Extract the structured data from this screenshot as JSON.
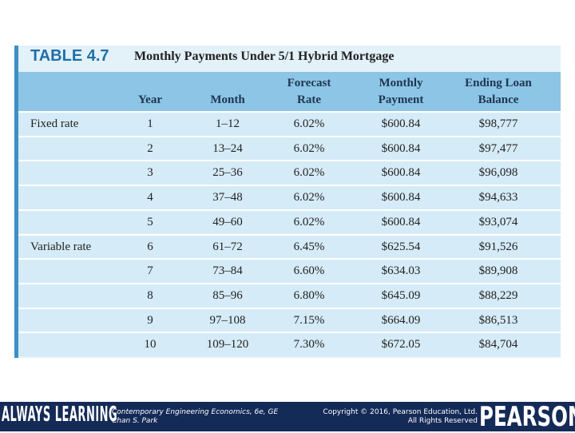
{
  "header": {
    "label": "TABLE 4.7",
    "title": "Monthly Payments Under 5/1 Hybrid Mortgage"
  },
  "table": {
    "columns": [
      [
        "Year"
      ],
      [
        "Month"
      ],
      [
        "Forecast",
        "Rate"
      ],
      [
        "Monthly",
        "Payment"
      ],
      [
        "Ending Loan",
        "Balance"
      ]
    ],
    "groups": [
      {
        "label": "Fixed rate",
        "rows": [
          [
            "1",
            "1–12",
            "6.02%",
            "$600.84",
            "$98,777"
          ],
          [
            "2",
            "13–24",
            "6.02%",
            "$600.84",
            "$97,477"
          ],
          [
            "3",
            "25–36",
            "6.02%",
            "$600.84",
            "$96,098"
          ],
          [
            "4",
            "37–48",
            "6.02%",
            "$600.84",
            "$94,633"
          ],
          [
            "5",
            "49–60",
            "6.02%",
            "$600.84",
            "$93,074"
          ]
        ]
      },
      {
        "label": "Variable rate",
        "rows": [
          [
            "6",
            "61–72",
            "6.45%",
            "$625.54",
            "$91,526"
          ],
          [
            "7",
            "73–84",
            "6.60%",
            "$634.03",
            "$89,908"
          ],
          [
            "8",
            "85–96",
            "6.80%",
            "$645.09",
            "$88,229"
          ],
          [
            "9",
            "97–108",
            "7.15%",
            "$664.09",
            "$86,513"
          ],
          [
            "10",
            "109–120",
            "7.30%",
            "$672.05",
            "$84,704"
          ]
        ]
      }
    ]
  },
  "footer": {
    "brand": "ALWAYS LEARNING",
    "book": "Contemporary Engineering Economics, 6e, GE",
    "author": "Chan S. Park",
    "copyright": "Copyright © 2016, Pearson Education, Ltd.",
    "rights": "All Rights Reserved",
    "publisher": "PEARSON"
  }
}
